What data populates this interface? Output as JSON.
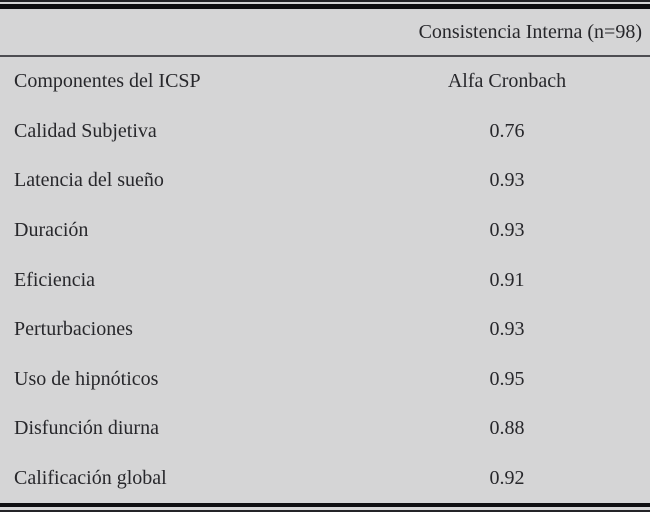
{
  "table": {
    "title_header": "Consistencia Interna (n=98)",
    "column_header": {
      "component": "Componentes del ICSP",
      "value": "Alfa Cronbach"
    },
    "rows": [
      {
        "component": "Calidad Subjetiva",
        "value": "0.76"
      },
      {
        "component": "Latencia del sueño",
        "value": "0.93"
      },
      {
        "component": "Duración",
        "value": "0.93"
      },
      {
        "component": "Eficiencia",
        "value": "0.91"
      },
      {
        "component": "Perturbaciones",
        "value": "0.93"
      },
      {
        "component": "Uso de hipnóticos",
        "value": "0.95"
      },
      {
        "component": "Disfunción diurna",
        "value": "0.88"
      },
      {
        "component": "Calificación global",
        "value": "0.92"
      }
    ]
  },
  "colors": {
    "background": "#d5d5d6",
    "text": "#27272b",
    "rule_thick": "#0f0f12",
    "rule_thin": "#242428",
    "header_divider": "#4d4d52"
  }
}
